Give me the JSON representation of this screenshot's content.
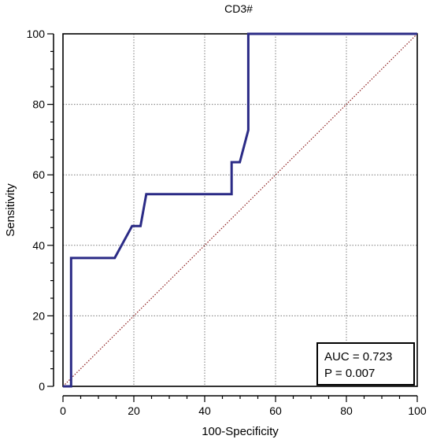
{
  "chart_data": {
    "type": "line",
    "title": "CD3#",
    "xlabel": "100-Specificity",
    "ylabel": "Sensitivity",
    "xlim": [
      0,
      100
    ],
    "ylim": [
      0,
      100
    ],
    "xticks": [
      0,
      20,
      40,
      60,
      80,
      100
    ],
    "yticks": [
      0,
      20,
      40,
      60,
      80,
      100
    ],
    "grid": true,
    "colors": {
      "roc": "#2b2b86",
      "diagonal": "#8b1a1a"
    },
    "series": [
      {
        "values": [
          [
            0,
            0
          ],
          [
            2.3,
            0
          ],
          [
            2.3,
            36.4
          ],
          [
            14.6,
            36.4
          ],
          [
            19.5,
            45.5
          ],
          [
            21.9,
            45.5
          ],
          [
            23.5,
            54.5
          ],
          [
            47.6,
            54.5
          ],
          [
            47.6,
            63.6
          ],
          [
            49.9,
            63.6
          ],
          [
            52.3,
            72.7
          ],
          [
            52.3,
            100
          ],
          [
            100,
            100
          ]
        ]
      },
      {
        "values": [
          [
            0,
            0
          ],
          [
            100,
            100
          ]
        ]
      }
    ],
    "annotation": {
      "auc": "AUC = 0.723",
      "p": "P = 0.007",
      "placement": "bottom-right"
    }
  }
}
